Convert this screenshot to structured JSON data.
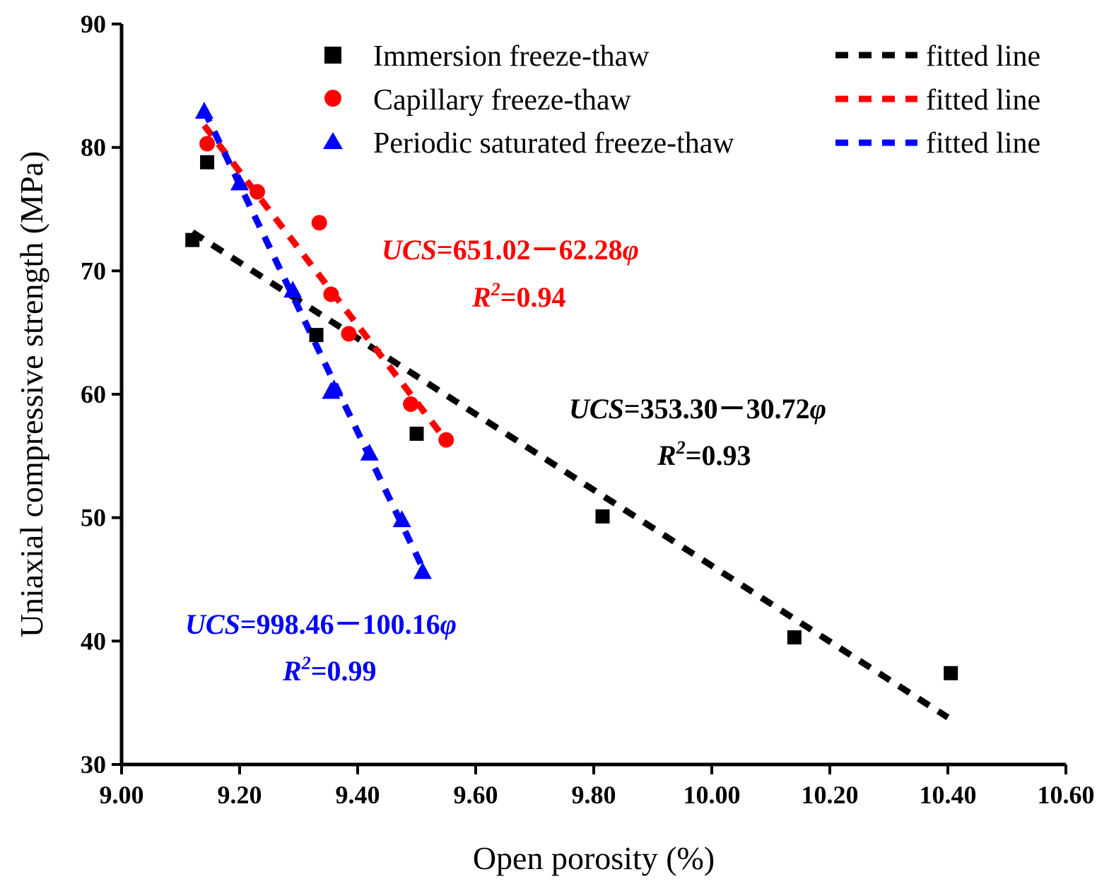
{
  "chart_data": {
    "type": "scatter",
    "xlabel": "Open porosity (%)",
    "ylabel": "Uniaxial compressive strength (MPa)",
    "xlim": [
      9.0,
      10.6
    ],
    "ylim": [
      30,
      90
    ],
    "x_ticks": [
      "9.00",
      "9.20",
      "9.40",
      "9.60",
      "9.80",
      "10.00",
      "10.20",
      "10.40",
      "10.60"
    ],
    "y_ticks": [
      "30",
      "40",
      "50",
      "60",
      "70",
      "80",
      "90"
    ],
    "legend_position": "top-right",
    "series": [
      {
        "name": "Immersion freeze-thaw",
        "color": "#000000",
        "marker": "square",
        "points": [
          [
            9.12,
            72.5
          ],
          [
            9.145,
            78.8
          ],
          [
            9.33,
            64.8
          ],
          [
            9.5,
            56.8
          ],
          [
            9.815,
            50.1
          ],
          [
            10.14,
            40.3
          ],
          [
            10.405,
            37.4
          ]
        ],
        "fit": {
          "label": "fitted line",
          "x_range": [
            9.12,
            10.4
          ],
          "equation": {
            "lhs": "UCS",
            "rhs": "=353.30－30.72",
            "var": "φ"
          },
          "r2": {
            "base": "R",
            "exp": "2",
            "value": "=0.93"
          }
        }
      },
      {
        "name": "Capillary freeze-thaw",
        "color": "#ff0000",
        "marker": "circle",
        "points": [
          [
            9.145,
            80.3
          ],
          [
            9.23,
            76.4
          ],
          [
            9.335,
            73.9
          ],
          [
            9.355,
            68.1
          ],
          [
            9.385,
            64.9
          ],
          [
            9.49,
            59.2
          ],
          [
            9.55,
            56.3
          ]
        ],
        "fit": {
          "label": "fitted line",
          "x_range": [
            9.14,
            9.55
          ],
          "equation": {
            "lhs": "UCS",
            "rhs": "=651.02－62.28",
            "var": "φ"
          },
          "r2": {
            "base": "R",
            "exp": "2",
            "value": "=0.94"
          }
        }
      },
      {
        "name": "Periodic saturated freeze-thaw",
        "color": "#0000ff",
        "marker": "triangle",
        "points": [
          [
            9.14,
            82.9
          ],
          [
            9.2,
            77.1
          ],
          [
            9.29,
            68.4
          ],
          [
            9.355,
            60.2
          ],
          [
            9.36,
            60.4
          ],
          [
            9.42,
            55.2
          ],
          [
            9.475,
            49.8
          ],
          [
            9.51,
            45.6
          ]
        ],
        "fit": {
          "label": "fitted line",
          "x_range": [
            9.14,
            9.51
          ],
          "equation": {
            "lhs": "UCS",
            "rhs": "=998.46－100.16",
            "var": "φ"
          },
          "r2": {
            "base": "R",
            "exp": "2",
            "value": "=0.99"
          }
        }
      }
    ]
  }
}
